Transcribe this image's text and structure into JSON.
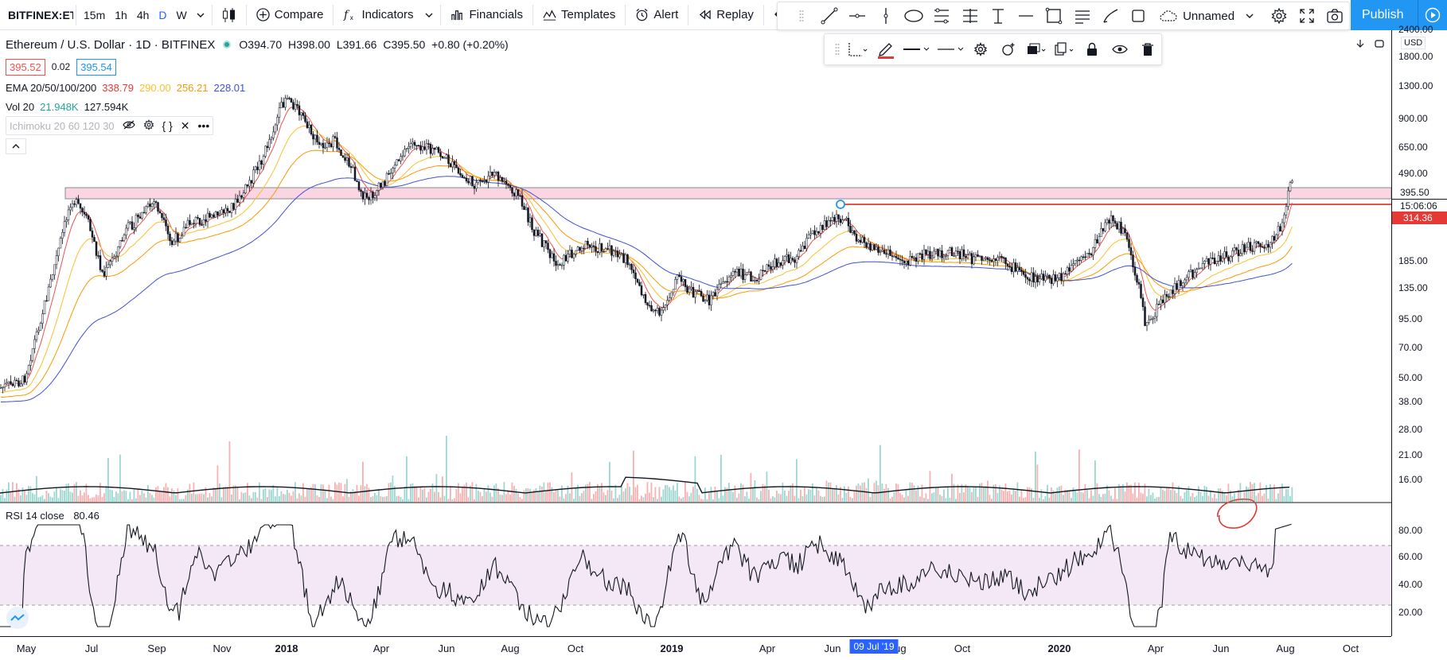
{
  "toolbar": {
    "symbol": "BITFINEX:ETHUSD",
    "intervals": [
      "15m",
      "1h",
      "4h",
      "D",
      "W"
    ],
    "active_interval": "D",
    "compare": "Compare",
    "indicators": "Indicators",
    "financials": "Financials",
    "templates": "Templates",
    "alert": "Alert",
    "replay": "Replay",
    "layout_name": "Unnamed",
    "publish": "Publish"
  },
  "legend": {
    "title": "Ethereum / U.S. Dollar · 1D · BITFINEX",
    "open": "O394.70",
    "high": "H398.00",
    "low": "L391.66",
    "close": "C395.50",
    "change": "+0.80 (+0.20%)",
    "bid": "395.52",
    "spread": "0.02",
    "ask": "395.54",
    "ema": {
      "label": "EMA 20/50/100/200",
      "v20": "338.79",
      "v50": "290.00",
      "v100": "256.21",
      "v200": "228.01"
    },
    "vol": {
      "label": "Vol 20",
      "v1": "21.948K",
      "v2": "127.594K"
    },
    "ichimoku": "Ichimoku 20 60 120 30"
  },
  "rsi": {
    "label": "RSI 14 close",
    "value": "80.46",
    "ticks": [
      "80.00",
      "60.00",
      "40.00",
      "20.00"
    ]
  },
  "price_scale": {
    "currency": "USD",
    "ticks": [
      "2400.00",
      "1800.00",
      "1300.00",
      "900.00",
      "650.00",
      "490.00",
      "185.00",
      "135.00",
      "95.00",
      "70.00",
      "50.00",
      "38.00",
      "28.00",
      "21.00",
      "16.00"
    ],
    "last_price": "395.50",
    "countdown": "15:06:06",
    "line_price": "314.36"
  },
  "time_axis": {
    "ticks": [
      "May",
      "Jul",
      "Sep",
      "Nov",
      "2018",
      "Apr",
      "Jun",
      "Aug",
      "Oct",
      "2019",
      "Apr",
      "Jun",
      "Aug",
      "Oct",
      "2020",
      "Apr",
      "Jun",
      "Aug",
      "Oct"
    ],
    "crosshair_label": "09 Jul '19"
  },
  "colors": {
    "ema20": "#ef5350",
    "ema50": "#fbc02d",
    "ema100": "#ff9800",
    "ema200": "#3f51d6",
    "up": "#26a69a",
    "down": "#ef5350",
    "accent": "#2962ff",
    "rsi_band": "#e1bee7"
  }
}
